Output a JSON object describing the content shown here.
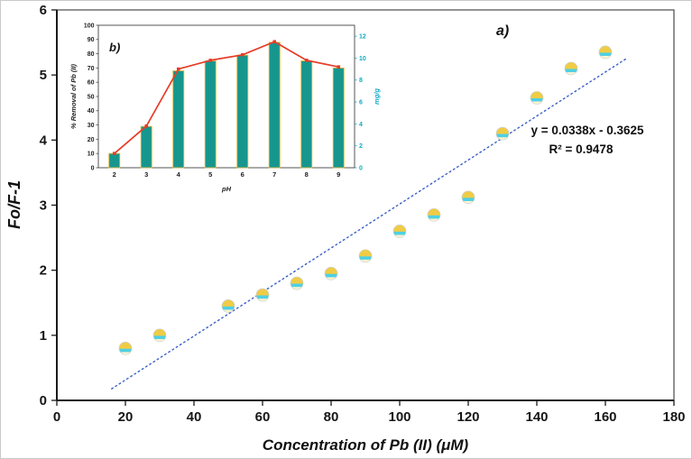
{
  "figure": {
    "panel_label_main": "a)",
    "panel_label_inset": "b)",
    "background": "#ffffff"
  },
  "chart_data": [
    {
      "type": "scatter",
      "name": "main-calibration-plot",
      "title": "",
      "xlabel": "Concentration of Pb (II) (μM)",
      "ylabel": "Fo/F-1",
      "xlim": [
        0,
        180
      ],
      "ylim": [
        0,
        6
      ],
      "xticks": [
        0,
        20,
        40,
        60,
        80,
        100,
        120,
        140,
        160,
        180
      ],
      "yticks": [
        0,
        1,
        2,
        3,
        4,
        5,
        6
      ],
      "grid": false,
      "legend": "none",
      "points": {
        "x": [
          20,
          30,
          50,
          60,
          70,
          80,
          90,
          100,
          110,
          120,
          130,
          140,
          150,
          160
        ],
        "y": [
          0.8,
          1.0,
          1.45,
          1.62,
          1.8,
          1.95,
          2.22,
          2.6,
          2.85,
          3.12,
          4.1,
          4.65,
          5.1,
          5.35
        ]
      },
      "marker": {
        "top_color": "#f0cc45",
        "band_color": "#4fd0e4",
        "bottom_color": "#fdf4cf"
      },
      "trendline": {
        "equation": "y = 0.0338x - 0.3625",
        "r2": "R² = 0.9478",
        "slope": 0.0338,
        "intercept": -0.3625,
        "x_start": 16,
        "x_end": 166,
        "color": "#3a5fc8",
        "style": "dotted"
      }
    },
    {
      "type": "bar",
      "name": "inset-ph-optimization",
      "title": "",
      "xlabel": "pH",
      "ylabel_left": "% Removal of Pb (II)",
      "ylabel_right": "mg/g",
      "categories": [
        "2",
        "3",
        "4",
        "5",
        "6",
        "7",
        "8",
        "9"
      ],
      "series": [
        {
          "name": "% Removal of Pb (II)",
          "type": "bar",
          "axis": "left",
          "values": [
            10,
            29,
            68,
            75,
            79,
            88,
            75,
            70
          ],
          "color": "#17968d",
          "edge_color": "#d8b845"
        },
        {
          "name": "mg/g",
          "type": "line",
          "axis": "right",
          "values": [
            1.3,
            3.8,
            9.0,
            9.8,
            10.3,
            11.5,
            9.8,
            9.2
          ],
          "color": "#e63c28"
        }
      ],
      "ylim_left": [
        0,
        100
      ],
      "ylim_right": [
        0,
        13
      ],
      "yticks_left": [
        0,
        10,
        20,
        30,
        40,
        50,
        60,
        70,
        80,
        90,
        100
      ],
      "yticks_right": [
        0,
        2,
        4,
        6,
        8,
        10,
        12
      ],
      "right_axis_color": "#0fa9c2",
      "grid": false,
      "legend": "none"
    }
  ]
}
